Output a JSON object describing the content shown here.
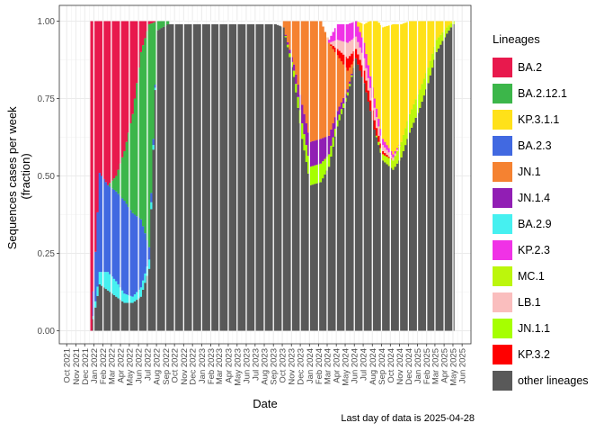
{
  "chart_data": {
    "type": "area",
    "stacked": true,
    "normalized": true,
    "xlabel": "Date",
    "ylabel_lines": [
      "Sequences cases per week",
      "(fraction)"
    ],
    "ylim": [
      0,
      1
    ],
    "yticks": [
      0,
      0.25,
      0.5,
      0.75,
      1
    ],
    "ytick_labels": [
      "0.00",
      "0.25",
      "0.50",
      "0.75",
      "1.00"
    ],
    "xlim": [
      "2021-09-06",
      "2025-07-01"
    ],
    "xtick_labels": [
      "Oct 2021",
      "Nov 2021",
      "Dec 2021",
      "Jan 2022",
      "Feb 2022",
      "Mar 2022",
      "Apr 2022",
      "May 2022",
      "Jun 2022",
      "Jul 2022",
      "Aug 2022",
      "Sep 2022",
      "Oct 2022",
      "Nov 2022",
      "Dec 2022",
      "Jan 2023",
      "Feb 2023",
      "Mar 2023",
      "Apr 2023",
      "May 2023",
      "Jun 2023",
      "Jul 2023",
      "Aug 2023",
      "Sep 2023",
      "Oct 2023",
      "Nov 2023",
      "Dec 2023",
      "Jan 2024",
      "Feb 2024",
      "Mar 2024",
      "Apr 2024",
      "May 2024",
      "Jun 2024",
      "Jul 2024",
      "Aug 2024",
      "Sep 2024",
      "Oct 2024",
      "Nov 2024",
      "Dec 2024",
      "Jan 2025",
      "Feb 2025",
      "Mar 2025",
      "Apr 2025",
      "May 2025",
      "Jun 2025"
    ],
    "grid": true,
    "legend_position": "right",
    "caption": "Last day of data is 2025-04-28",
    "legend": {
      "title": "Lineages",
      "items": [
        {
          "name": "BA.2",
          "color": "#E8194D"
        },
        {
          "name": "BA.2.12.1",
          "color": "#3CB64A"
        },
        {
          "name": "KP.3.1.1",
          "color": "#FFE119"
        },
        {
          "name": "BA.2.3",
          "color": "#4169E1"
        },
        {
          "name": "JN.1",
          "color": "#F58231"
        },
        {
          "name": "JN.1.4",
          "color": "#911EB4"
        },
        {
          "name": "BA.2.9",
          "color": "#46F0F0"
        },
        {
          "name": "KP.2.3",
          "color": "#F032E6"
        },
        {
          "name": "MC.1",
          "color": "#BCF60C"
        },
        {
          "name": "LB.1",
          "color": "#FABEBE"
        },
        {
          "name": "JN.1.1",
          "color": "#A6FF00"
        },
        {
          "name": "KP.3.2",
          "color": "#FF0000"
        },
        {
          "name": "other lineages",
          "color": "#595959"
        }
      ]
    },
    "series": [
      {
        "name": "other lineages",
        "x": [
          "2021-12-20",
          "2022-01-17",
          "2022-02-14",
          "2022-03-14",
          "2022-04-11",
          "2022-05-09",
          "2022-06-06",
          "2022-07-04",
          "2022-08-01",
          "2022-09-05",
          "2022-12-05",
          "2023-03-06",
          "2023-06-05",
          "2023-09-04",
          "2023-10-02",
          "2023-11-06",
          "2023-12-04",
          "2024-01-01",
          "2024-02-05",
          "2024-03-04",
          "2024-04-01",
          "2024-05-06",
          "2024-06-03",
          "2024-07-01",
          "2024-08-05",
          "2024-09-02",
          "2024-10-07",
          "2024-11-04",
          "2024-12-02",
          "2025-01-06",
          "2025-02-03",
          "2025-03-03",
          "2025-04-07",
          "2025-04-28"
        ],
        "values": [
          0.0,
          0.15,
          0.13,
          0.11,
          0.09,
          0.09,
          0.11,
          0.2,
          0.97,
          0.99,
          0.99,
          0.99,
          0.99,
          0.99,
          0.98,
          0.82,
          0.62,
          0.47,
          0.48,
          0.53,
          0.66,
          0.76,
          0.88,
          0.8,
          0.65,
          0.55,
          0.52,
          0.56,
          0.64,
          0.72,
          0.8,
          0.9,
          0.96,
          0.99
        ]
      },
      {
        "name": "BA.2.9",
        "x": [
          "2021-12-20",
          "2022-01-17",
          "2022-02-14",
          "2022-03-14",
          "2022-04-11",
          "2022-05-09",
          "2022-06-06",
          "2022-07-04",
          "2022-08-01",
          "2022-09-05"
        ],
        "values": [
          0.0,
          0.04,
          0.06,
          0.05,
          0.03,
          0.02,
          0.03,
          0.03,
          0.0,
          0.0
        ]
      },
      {
        "name": "BA.2.3",
        "x": [
          "2021-12-20",
          "2022-01-17",
          "2022-02-14",
          "2022-03-14",
          "2022-04-11",
          "2022-05-09",
          "2022-06-06",
          "2022-07-04",
          "2022-08-01",
          "2022-09-05"
        ],
        "values": [
          0.0,
          0.32,
          0.28,
          0.29,
          0.3,
          0.27,
          0.22,
          0.04,
          0.0,
          0.0
        ]
      },
      {
        "name": "BA.2.12.1",
        "x": [
          "2021-12-20",
          "2022-01-17",
          "2022-02-14",
          "2022-03-14",
          "2022-04-11",
          "2022-05-09",
          "2022-06-06",
          "2022-07-04",
          "2022-08-01",
          "2022-09-05"
        ],
        "values": [
          0.0,
          0.0,
          0.0,
          0.05,
          0.16,
          0.32,
          0.54,
          0.72,
          0.03,
          0.01
        ]
      },
      {
        "name": "BA.2",
        "x": [
          "2021-12-20",
          "2022-01-17",
          "2022-02-14",
          "2022-03-14",
          "2022-04-11",
          "2022-05-09",
          "2022-06-06",
          "2022-07-04",
          "2022-08-01",
          "2022-09-05"
        ],
        "values": [
          1.0,
          0.49,
          0.53,
          0.5,
          0.42,
          0.3,
          0.1,
          0.01,
          0.0,
          0.0
        ]
      },
      {
        "name": "JN.1.1",
        "x": [
          "2023-10-02",
          "2023-11-06",
          "2023-12-04",
          "2024-01-01",
          "2024-02-05",
          "2024-03-04",
          "2024-04-01",
          "2024-05-06",
          "2024-06-03",
          "2024-07-01"
        ],
        "values": [
          0.0,
          0.02,
          0.05,
          0.06,
          0.06,
          0.04,
          0.02,
          0.01,
          0.0,
          0.0
        ]
      },
      {
        "name": "MC.1",
        "x": [
          "2024-07-01",
          "2024-08-05",
          "2024-09-02",
          "2024-10-07",
          "2024-11-04",
          "2024-12-02",
          "2025-01-06",
          "2025-02-03",
          "2025-03-03",
          "2025-04-07",
          "2025-04-28"
        ],
        "values": [
          0.0,
          0.0,
          0.02,
          0.03,
          0.05,
          0.06,
          0.06,
          0.05,
          0.04,
          0.02,
          0.01
        ]
      },
      {
        "name": "JN.1.4",
        "x": [
          "2023-10-02",
          "2023-11-06",
          "2023-12-04",
          "2024-01-01",
          "2024-02-05",
          "2024-03-04",
          "2024-04-01",
          "2024-05-06",
          "2024-06-03",
          "2024-07-01"
        ],
        "values": [
          0.0,
          0.02,
          0.06,
          0.08,
          0.08,
          0.06,
          0.03,
          0.01,
          0.0,
          0.0
        ]
      },
      {
        "name": "JN.1",
        "x": [
          "2023-10-02",
          "2023-11-06",
          "2023-12-04",
          "2024-01-01",
          "2024-02-05",
          "2024-03-04",
          "2024-04-01",
          "2024-05-06",
          "2024-06-03",
          "2024-07-01"
        ],
        "values": [
          0.02,
          0.14,
          0.27,
          0.39,
          0.38,
          0.3,
          0.18,
          0.06,
          0.0,
          0.0
        ]
      },
      {
        "name": "KP.3.2",
        "x": [
          "2024-03-04",
          "2024-04-01",
          "2024-05-06",
          "2024-06-03",
          "2024-07-01",
          "2024-08-05",
          "2024-09-02",
          "2024-10-07",
          "2024-11-04"
        ],
        "values": [
          0.0,
          0.02,
          0.04,
          0.03,
          0.04,
          0.03,
          0.01,
          0.0,
          0.0
        ]
      },
      {
        "name": "LB.1",
        "x": [
          "2024-03-04",
          "2024-04-01",
          "2024-05-06",
          "2024-06-03",
          "2024-07-01",
          "2024-08-05",
          "2024-09-02",
          "2024-10-07",
          "2024-11-04"
        ],
        "values": [
          0.0,
          0.03,
          0.05,
          0.04,
          0.04,
          0.04,
          0.02,
          0.01,
          0.0
        ]
      },
      {
        "name": "KP.2.3",
        "x": [
          "2024-03-04",
          "2024-04-01",
          "2024-05-06",
          "2024-06-03",
          "2024-07-01",
          "2024-08-05",
          "2024-09-02",
          "2024-10-07",
          "2024-11-04"
        ],
        "values": [
          0.01,
          0.05,
          0.06,
          0.05,
          0.05,
          0.03,
          0.02,
          0.01,
          0.0
        ]
      },
      {
        "name": "KP.3.1.1",
        "x": [
          "2024-05-06",
          "2024-06-03",
          "2024-07-01",
          "2024-08-05",
          "2024-09-02",
          "2024-10-07",
          "2024-11-04",
          "2024-12-02",
          "2025-01-06",
          "2025-02-03",
          "2025-03-03",
          "2025-04-07",
          "2025-04-28"
        ],
        "values": [
          0.0,
          0.0,
          0.06,
          0.26,
          0.36,
          0.42,
          0.38,
          0.3,
          0.22,
          0.15,
          0.06,
          0.02,
          0.0
        ]
      }
    ]
  }
}
